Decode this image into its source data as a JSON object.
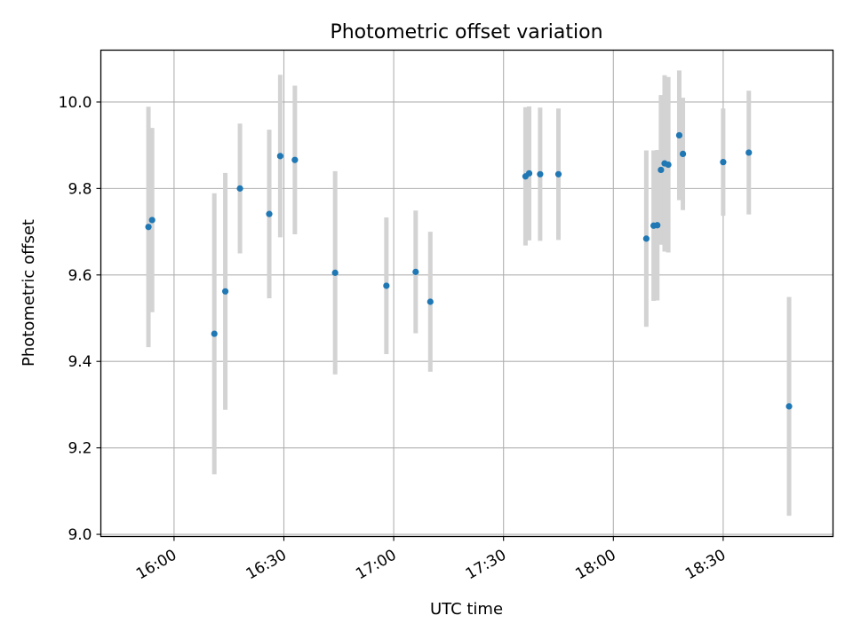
{
  "chart_data": {
    "type": "scatter",
    "title": "Photometric offset variation",
    "xlabel": "UTC time",
    "ylabel": "Photometric offset",
    "grid": true,
    "xlim": [
      "15:40",
      "19:00"
    ],
    "ylim": [
      8.995,
      10.12
    ],
    "x_ticks": [
      "16:00",
      "16:30",
      "17:00",
      "17:30",
      "18:00",
      "18:30"
    ],
    "y_ticks": [
      "9.0",
      "9.2",
      "9.4",
      "9.6",
      "9.8",
      "10.0"
    ],
    "colors": {
      "point": "#1f77b4",
      "errorbar": "#d3d3d3",
      "grid": "#b0b0b0"
    },
    "points": [
      {
        "x": "15:53",
        "y": 9.711,
        "yerr": 0.278
      },
      {
        "x": "15:54",
        "y": 9.727,
        "yerr": 0.213
      },
      {
        "x": "16:11",
        "y": 9.464,
        "yerr": 0.325
      },
      {
        "x": "16:14",
        "y": 9.562,
        "yerr": 0.274
      },
      {
        "x": "16:18",
        "y": 9.8,
        "yerr": 0.15
      },
      {
        "x": "16:26",
        "y": 9.741,
        "yerr": 0.195
      },
      {
        "x": "16:29",
        "y": 9.875,
        "yerr": 0.188
      },
      {
        "x": "16:33",
        "y": 9.866,
        "yerr": 0.172
      },
      {
        "x": "16:44",
        "y": 9.605,
        "yerr": 0.235
      },
      {
        "x": "16:58",
        "y": 9.575,
        "yerr": 0.158
      },
      {
        "x": "17:06",
        "y": 9.607,
        "yerr": 0.142
      },
      {
        "x": "17:10",
        "y": 9.538,
        "yerr": 0.162
      },
      {
        "x": "17:36",
        "y": 9.828,
        "yerr": 0.16
      },
      {
        "x": "17:37",
        "y": 9.835,
        "yerr": 0.155
      },
      {
        "x": "17:40",
        "y": 9.833,
        "yerr": 0.154
      },
      {
        "x": "17:45",
        "y": 9.833,
        "yerr": 0.152
      },
      {
        "x": "18:09",
        "y": 9.684,
        "yerr": 0.204
      },
      {
        "x": "18:11",
        "y": 9.714,
        "yerr": 0.174
      },
      {
        "x": "18:12",
        "y": 9.715,
        "yerr": 0.174
      },
      {
        "x": "18:13",
        "y": 9.843,
        "yerr": 0.173
      },
      {
        "x": "18:14",
        "y": 9.858,
        "yerr": 0.204
      },
      {
        "x": "18:15",
        "y": 9.855,
        "yerr": 0.203
      },
      {
        "x": "18:18",
        "y": 9.923,
        "yerr": 0.15
      },
      {
        "x": "18:19",
        "y": 9.88,
        "yerr": 0.13
      },
      {
        "x": "18:30",
        "y": 9.861,
        "yerr": 0.124
      },
      {
        "x": "18:37",
        "y": 9.883,
        "yerr": 0.143
      },
      {
        "x": "18:48",
        "y": 9.296,
        "yerr": 0.253
      }
    ]
  }
}
